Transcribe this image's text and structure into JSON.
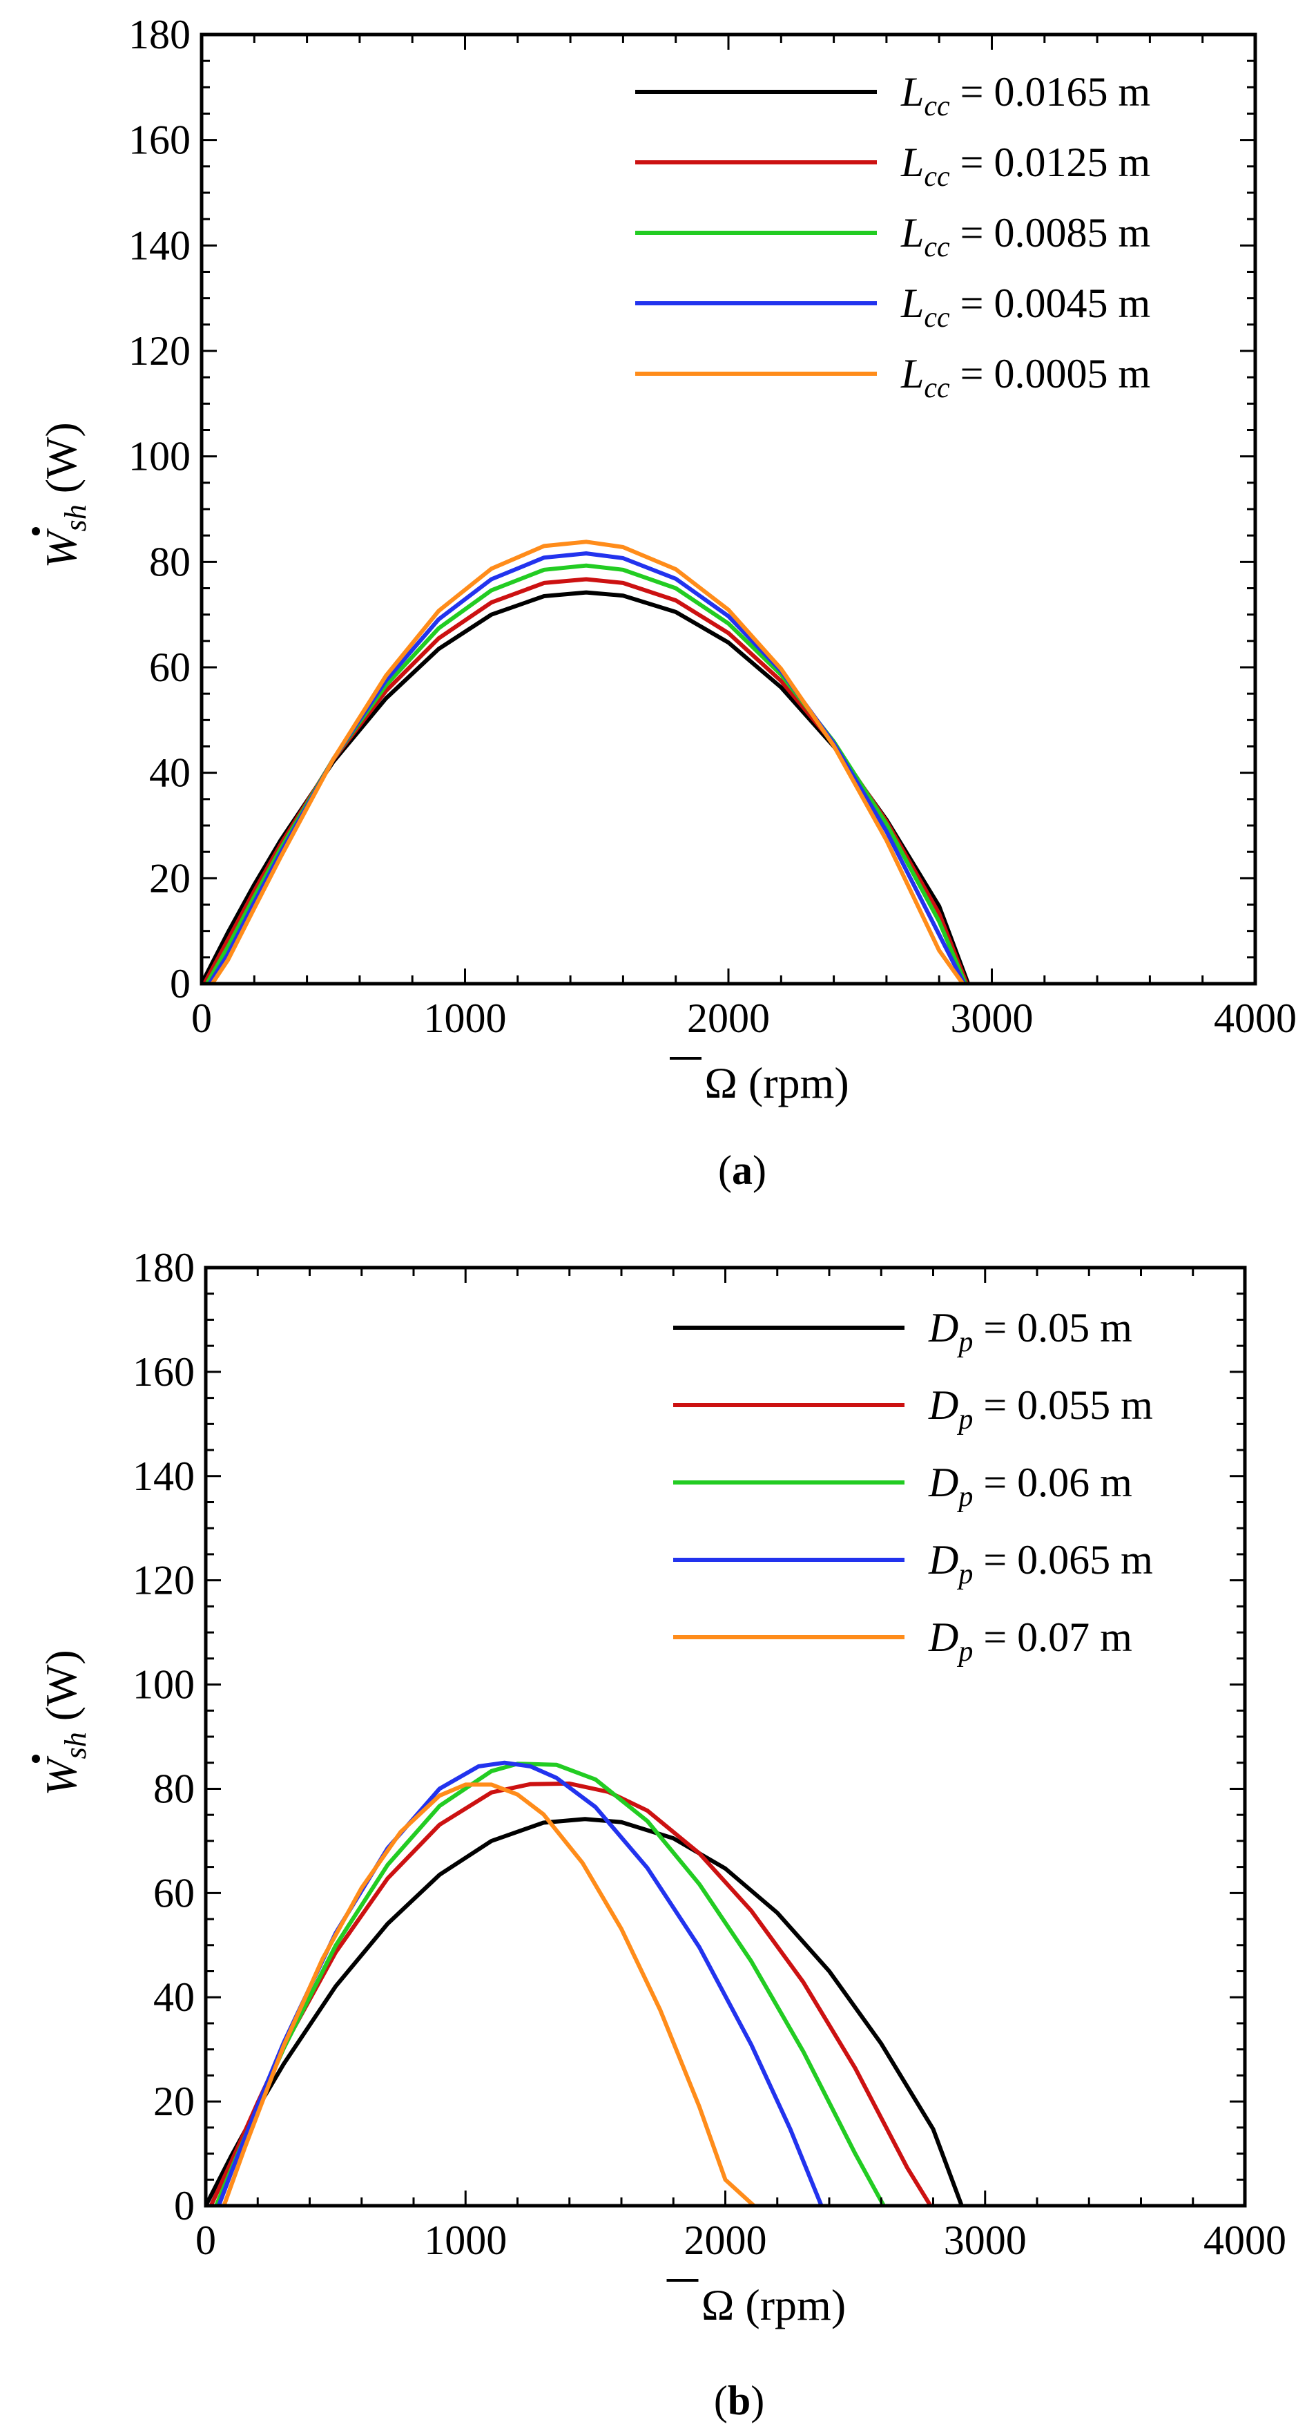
{
  "chart_data": [
    {
      "type": "line",
      "panel_label": {
        "open": "(",
        "letter": "a",
        "close": ")"
      },
      "xlabel": {
        "symbol": "Ω",
        "unit": "(rpm)"
      },
      "ylabel": {
        "symbol": "W",
        "sub": "sh",
        "unit": "(W)"
      },
      "xlim": [
        0,
        4000
      ],
      "ylim": [
        0,
        180
      ],
      "xticks": [
        0,
        1000,
        2000,
        3000,
        4000
      ],
      "yticks": [
        0,
        20,
        40,
        60,
        80,
        100,
        120,
        140,
        160,
        180
      ],
      "grid": false,
      "legend_position": "top-right",
      "series": [
        {
          "name": "L_cc = 0.0165 m",
          "var": "L",
          "sub": "cc",
          "value_text": " = 0.0165 m",
          "color": "#000000",
          "x": [
            0,
            100,
            200,
            300,
            500,
            700,
            900,
            1100,
            1300,
            1460,
            1600,
            1800,
            2000,
            2200,
            2400,
            2600,
            2800,
            2910
          ],
          "y": [
            0,
            9.7,
            18.8,
            27.2,
            42.1,
            54.1,
            63.5,
            70.0,
            73.5,
            74.2,
            73.6,
            70.5,
            64.7,
            56.2,
            45.0,
            31.1,
            14.7,
            0
          ]
        },
        {
          "name": "L_cc = 0.0125 m",
          "var": "L",
          "sub": "cc",
          "value_text": " = 0.0125 m",
          "color": "#cc1111",
          "x": [
            10,
            100,
            200,
            300,
            500,
            700,
            900,
            1100,
            1300,
            1460,
            1600,
            1800,
            2000,
            2200,
            2400,
            2600,
            2800,
            2905
          ],
          "y": [
            0,
            8.3,
            17.6,
            26.4,
            42.5,
            55.5,
            65.5,
            72.3,
            76.0,
            76.7,
            76.0,
            72.7,
            66.5,
            57.4,
            45.5,
            30.8,
            13.3,
            0
          ]
        },
        {
          "name": "L_cc = 0.0085 m",
          "var": "L",
          "sub": "cc",
          "value_text": " = 0.0085 m",
          "color": "#22cc22",
          "x": [
            20,
            100,
            200,
            300,
            500,
            700,
            900,
            1100,
            1300,
            1460,
            1600,
            1800,
            2000,
            2200,
            2400,
            2600,
            2800,
            2900
          ],
          "y": [
            0,
            7.0,
            16.5,
            25.6,
            42.6,
            56.6,
            67.4,
            74.6,
            78.5,
            79.3,
            78.5,
            75.0,
            68.3,
            58.6,
            45.9,
            30.3,
            11.8,
            0
          ]
        },
        {
          "name": "L_cc = 0.0045 m",
          "var": "L",
          "sub": "cc",
          "value_text": " = 0.0045 m",
          "color": "#2233ee",
          "x": [
            30,
            100,
            200,
            300,
            500,
            700,
            900,
            1100,
            1300,
            1460,
            1600,
            1800,
            2000,
            2200,
            2400,
            2600,
            2800,
            2895
          ],
          "y": [
            0,
            5.6,
            15.4,
            24.8,
            42.6,
            57.5,
            69.1,
            76.7,
            80.8,
            81.6,
            80.7,
            76.8,
            69.7,
            59.3,
            45.6,
            28.9,
            9.3,
            0
          ]
        },
        {
          "name": "L_cc = 0.0005 m",
          "var": "L",
          "sub": "cc",
          "value_text": " = 0.0005 m",
          "color": "#ff8c1a",
          "x": [
            40,
            100,
            200,
            300,
            500,
            700,
            900,
            1100,
            1300,
            1460,
            1600,
            1800,
            2000,
            2200,
            2400,
            2600,
            2800,
            2890
          ],
          "y": [
            0,
            4.5,
            14.3,
            24.0,
            42.6,
            58.4,
            70.7,
            78.7,
            83.0,
            83.8,
            82.8,
            78.6,
            70.9,
            59.7,
            45.1,
            27.2,
            6.3,
            0
          ]
        }
      ]
    },
    {
      "type": "line",
      "panel_label": {
        "open": "(",
        "letter": "b",
        "close": ")"
      },
      "xlabel": {
        "symbol": "Ω",
        "unit": "(rpm)"
      },
      "ylabel": {
        "symbol": "W",
        "sub": "sh",
        "unit": "(W)"
      },
      "xlim": [
        0,
        4000
      ],
      "ylim": [
        0,
        180
      ],
      "xticks": [
        0,
        1000,
        2000,
        3000,
        4000
      ],
      "yticks": [
        0,
        20,
        40,
        60,
        80,
        100,
        120,
        140,
        160,
        180
      ],
      "grid": false,
      "legend_position": "top-right",
      "series": [
        {
          "name": "D_p = 0.05 m",
          "var": "D",
          "sub": "p",
          "value_text": " = 0.05 m",
          "color": "#000000",
          "x": [
            0,
            100,
            200,
            300,
            500,
            700,
            900,
            1100,
            1300,
            1460,
            1600,
            1800,
            2000,
            2200,
            2400,
            2600,
            2800,
            2910
          ],
          "y": [
            0,
            9.7,
            18.8,
            27.2,
            42.1,
            54.1,
            63.5,
            70.0,
            73.5,
            74.2,
            73.6,
            70.5,
            64.7,
            56.2,
            45.0,
            31.1,
            14.7,
            0
          ]
        },
        {
          "name": "D_p = 0.055 m",
          "var": "D",
          "sub": "p",
          "value_text": " = 0.055 m",
          "color": "#cc1111",
          "x": [
            20,
            100,
            200,
            300,
            500,
            700,
            900,
            1100,
            1250,
            1400,
            1550,
            1700,
            1900,
            2100,
            2300,
            2500,
            2700,
            2790
          ],
          "y": [
            0,
            8.6,
            19.8,
            30.5,
            48.6,
            62.8,
            73.1,
            79.3,
            80.9,
            81.0,
            79.4,
            75.8,
            67.6,
            56.6,
            42.9,
            26.4,
            7.3,
            0
          ]
        },
        {
          "name": "D_p = 0.06 m",
          "var": "D",
          "sub": "p",
          "value_text": " = 0.06 m",
          "color": "#22cc22",
          "x": [
            40,
            100,
            200,
            300,
            500,
            700,
            900,
            1100,
            1200,
            1350,
            1500,
            1700,
            1900,
            2100,
            2300,
            2500,
            2610
          ],
          "y": [
            0,
            7.2,
            19.0,
            30.2,
            49.9,
            65.4,
            76.7,
            83.4,
            84.8,
            84.6,
            81.8,
            73.8,
            61.7,
            46.9,
            29.6,
            10.0,
            0
          ]
        },
        {
          "name": "D_p = 0.065 m",
          "var": "D",
          "sub": "p",
          "value_text": " = 0.065 m",
          "color": "#2233ee",
          "x": [
            50,
            100,
            200,
            300,
            500,
            700,
            900,
            1050,
            1150,
            1250,
            1350,
            1500,
            1700,
            1900,
            2100,
            2250,
            2370
          ],
          "y": [
            0,
            6.6,
            19.3,
            31.3,
            52.3,
            68.6,
            80.0,
            84.3,
            85.0,
            84.3,
            82.1,
            76.5,
            64.8,
            49.6,
            30.9,
            14.7,
            0
          ]
        },
        {
          "name": "D_p = 0.07 m",
          "var": "D",
          "sub": "p",
          "value_text": " = 0.07 m",
          "color": "#ff8c1a",
          "x": [
            70,
            150,
            300,
            450,
            600,
            750,
            900,
            1000,
            1100,
            1200,
            1300,
            1450,
            1600,
            1750,
            1900,
            2000,
            2110
          ],
          "y": [
            0,
            11.1,
            30.7,
            47.4,
            61.0,
            71.7,
            78.7,
            80.8,
            80.8,
            78.9,
            75.1,
            65.8,
            53.1,
            37.5,
            19.0,
            5.0,
            0
          ]
        }
      ]
    }
  ]
}
